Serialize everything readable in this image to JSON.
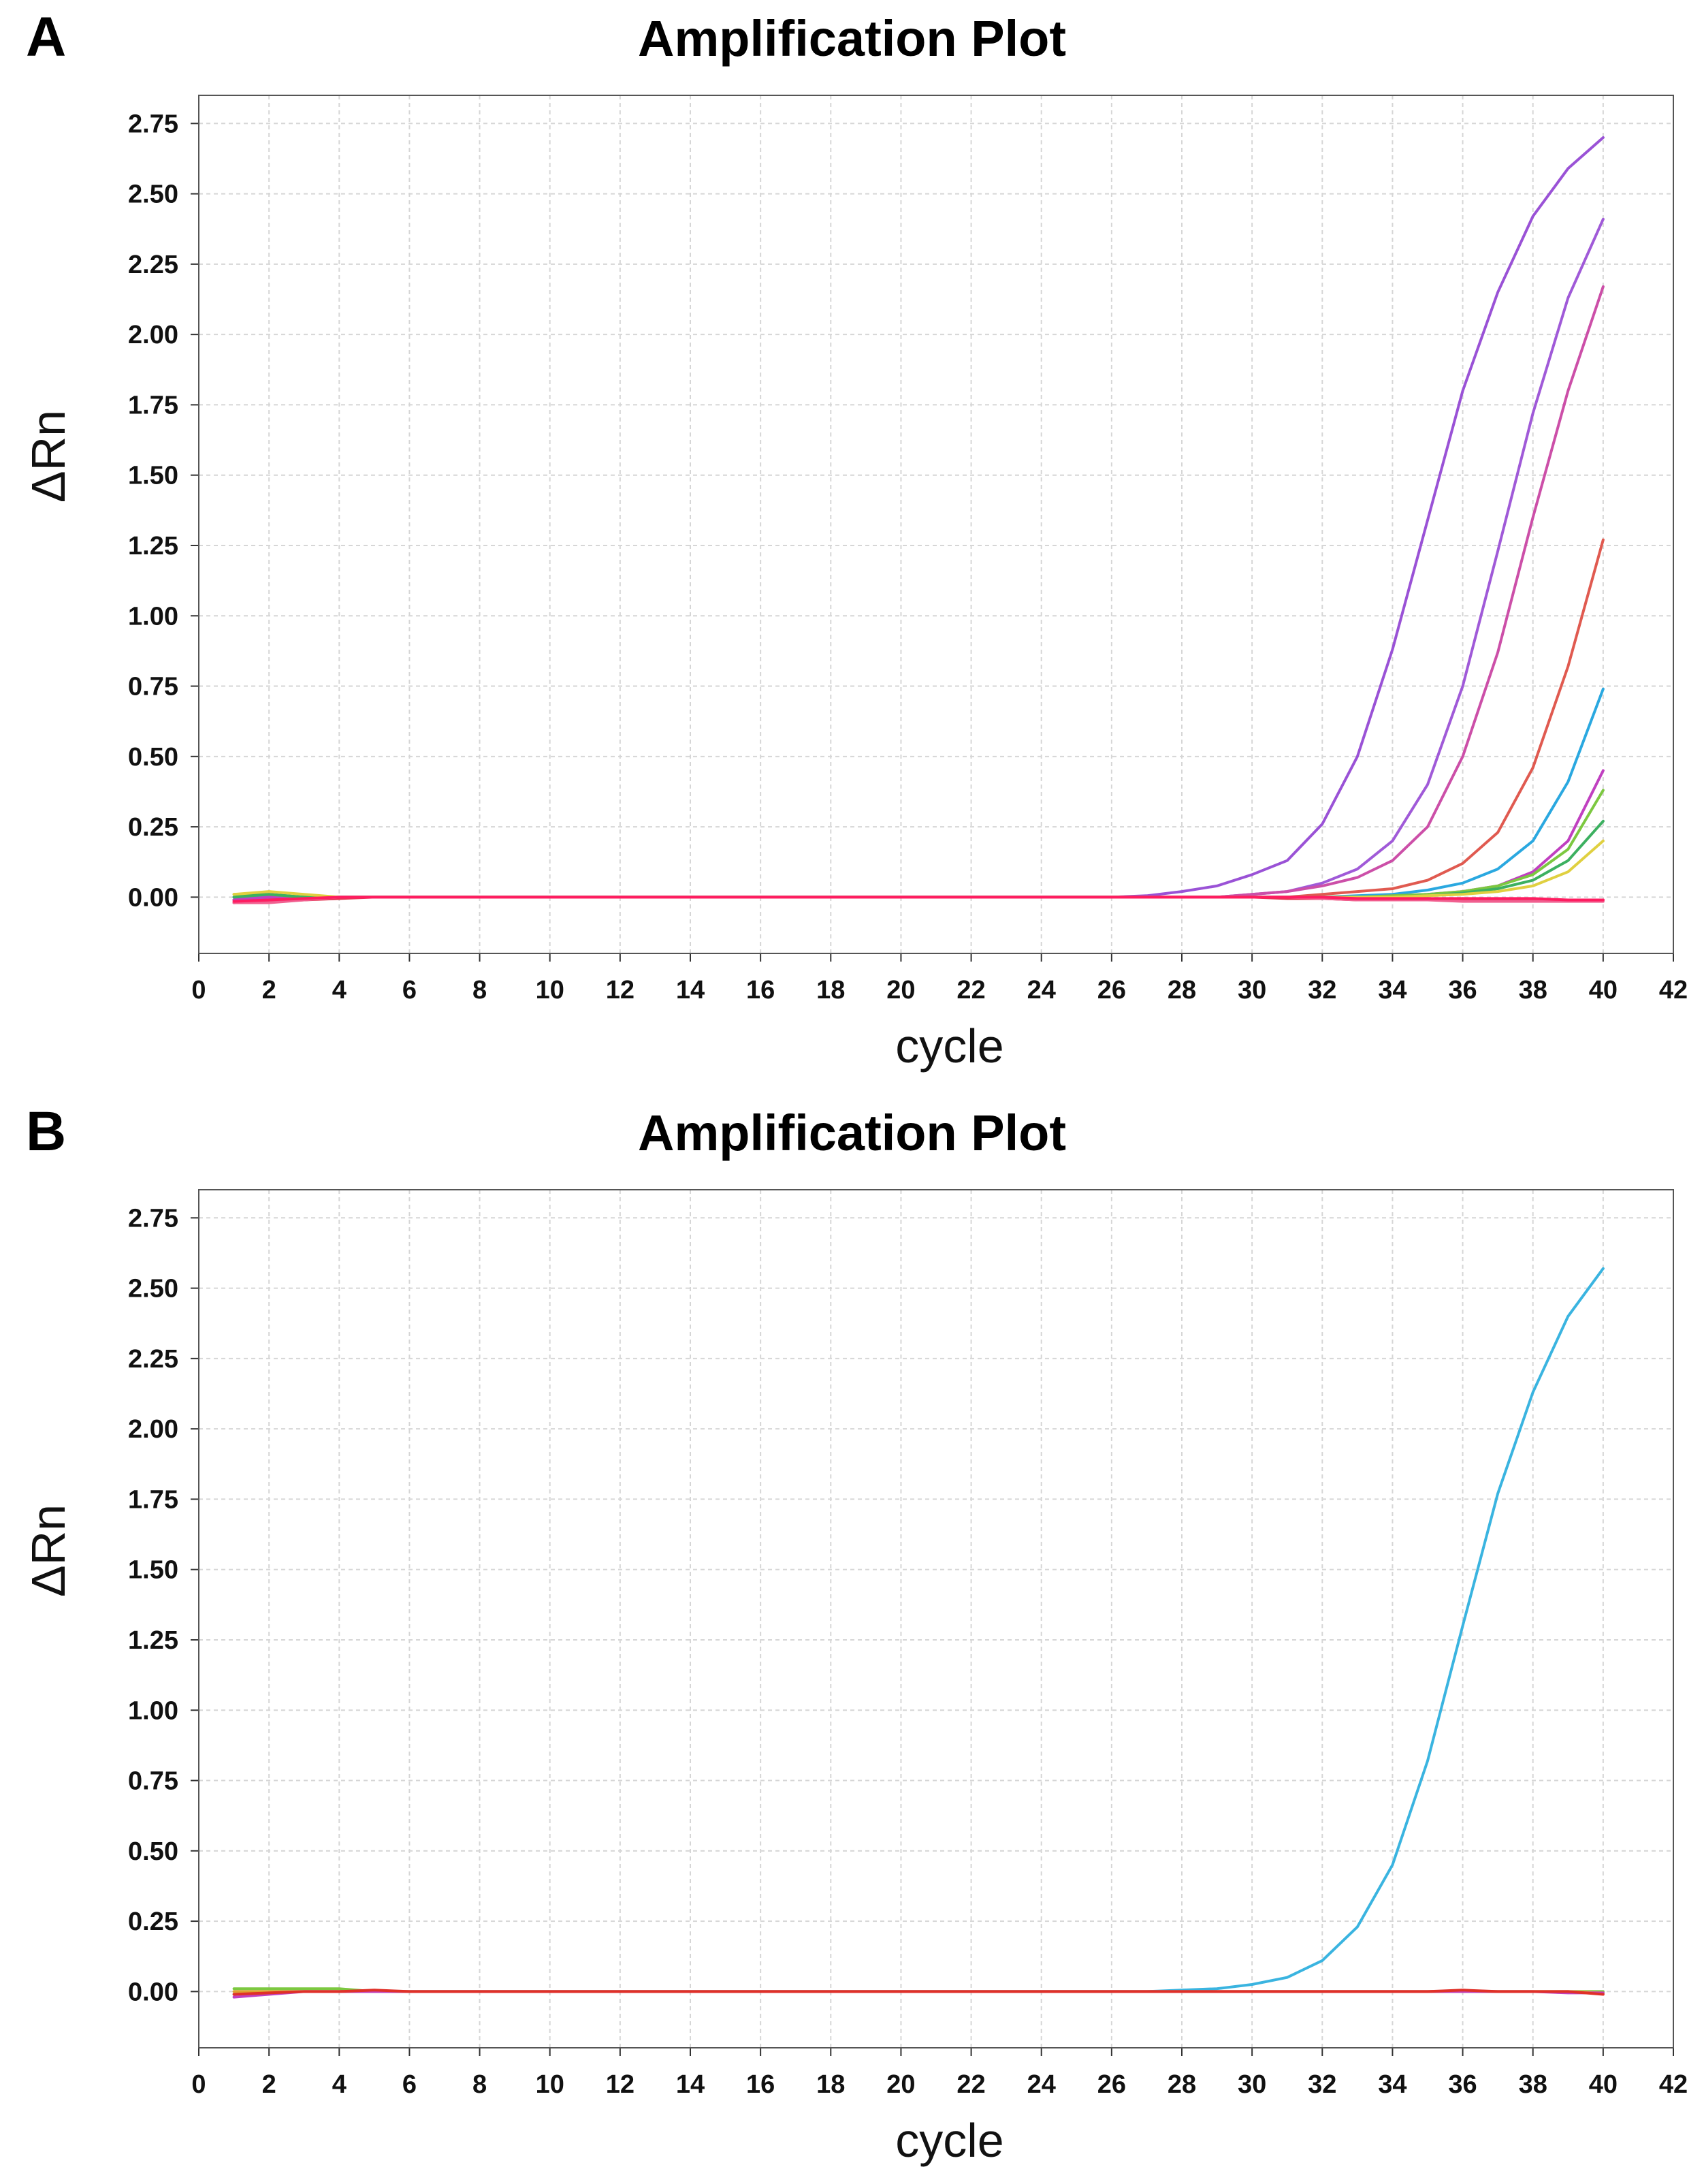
{
  "chart_data": [
    {
      "panel": "A",
      "type": "line",
      "title": "Amplification Plot",
      "xlabel": "cycle",
      "ylabel": "ΔRn",
      "xlim": [
        0,
        42
      ],
      "ylim": [
        -0.2,
        2.85
      ],
      "xticks": [
        "0",
        "2",
        "4",
        "6",
        "8",
        "10",
        "12",
        "14",
        "16",
        "18",
        "20",
        "22",
        "24",
        "26",
        "28",
        "30",
        "32",
        "34",
        "36",
        "38",
        "40",
        "42"
      ],
      "yticks": [
        "0.00",
        "0.25",
        "0.50",
        "0.75",
        "1.00",
        "1.25",
        "1.50",
        "1.75",
        "2.00",
        "2.25",
        "2.50",
        "2.75"
      ],
      "grid": true,
      "x_start": 1,
      "series": [
        {
          "name": "curve-1",
          "color": "#9a52d6",
          "values": [
            -0.01,
            0.01,
            0.0,
            0.0,
            0.0,
            0.0,
            0.0,
            0.0,
            0.0,
            0.0,
            0.0,
            0.0,
            0.0,
            0.0,
            0.0,
            0.0,
            0.0,
            0.0,
            0.0,
            0.0,
            0.0,
            0.0,
            0.0,
            0.0,
            0.0,
            0.0,
            0.005,
            0.02,
            0.04,
            0.08,
            0.13,
            0.26,
            0.5,
            0.88,
            1.34,
            1.8,
            2.15,
            2.42,
            2.59,
            2.7
          ]
        },
        {
          "name": "curve-2",
          "color": "#a05ad8",
          "values": [
            -0.01,
            0.0,
            0.0,
            0.0,
            0.0,
            0.0,
            0.0,
            0.0,
            0.0,
            0.0,
            0.0,
            0.0,
            0.0,
            0.0,
            0.0,
            0.0,
            0.0,
            0.0,
            0.0,
            0.0,
            0.0,
            0.0,
            0.0,
            0.0,
            0.0,
            0.0,
            0.0,
            0.0,
            0.0,
            0.01,
            0.02,
            0.05,
            0.1,
            0.2,
            0.4,
            0.75,
            1.23,
            1.72,
            2.13,
            2.41
          ]
        },
        {
          "name": "curve-3",
          "color": "#cc4fa8",
          "values": [
            -0.02,
            0.0,
            0.0,
            0.0,
            0.0,
            0.0,
            0.0,
            0.0,
            0.0,
            0.0,
            0.0,
            0.0,
            0.0,
            0.0,
            0.0,
            0.0,
            0.0,
            0.0,
            0.0,
            0.0,
            0.0,
            0.0,
            0.0,
            0.0,
            0.0,
            0.0,
            0.0,
            0.0,
            0.0,
            0.01,
            0.02,
            0.04,
            0.07,
            0.13,
            0.25,
            0.5,
            0.87,
            1.35,
            1.8,
            2.17
          ]
        },
        {
          "name": "curve-4",
          "color": "#e05a50",
          "values": [
            -0.01,
            0.0,
            0.0,
            0.0,
            0.0,
            0.0,
            0.0,
            0.0,
            0.0,
            0.0,
            0.0,
            0.0,
            0.0,
            0.0,
            0.0,
            0.0,
            0.0,
            0.0,
            0.0,
            0.0,
            0.0,
            0.0,
            0.0,
            0.0,
            0.0,
            0.0,
            0.0,
            0.0,
            0.0,
            0.0,
            0.0,
            0.01,
            0.02,
            0.03,
            0.06,
            0.12,
            0.23,
            0.46,
            0.82,
            1.27
          ]
        },
        {
          "name": "curve-5",
          "color": "#2aa8e0",
          "values": [
            0.0,
            0.0,
            0.0,
            0.0,
            0.0,
            0.0,
            0.0,
            0.0,
            0.0,
            0.0,
            0.0,
            0.0,
            0.0,
            0.0,
            0.0,
            0.0,
            0.0,
            0.0,
            0.0,
            0.0,
            0.0,
            0.0,
            0.0,
            0.0,
            0.0,
            0.0,
            0.0,
            0.0,
            0.0,
            0.0,
            0.0,
            0.0,
            0.005,
            0.01,
            0.025,
            0.05,
            0.1,
            0.2,
            0.41,
            0.74
          ]
        },
        {
          "name": "curve-6",
          "color": "#c040c0",
          "values": [
            -0.01,
            0.0,
            0.0,
            0.0,
            0.0,
            0.0,
            0.0,
            0.0,
            0.0,
            0.0,
            0.0,
            0.0,
            0.0,
            0.0,
            0.0,
            0.0,
            0.0,
            0.0,
            0.0,
            0.0,
            0.0,
            0.0,
            0.0,
            0.0,
            0.0,
            0.0,
            0.0,
            0.0,
            0.0,
            0.0,
            0.0,
            0.0,
            0.0,
            0.005,
            0.01,
            0.02,
            0.04,
            0.09,
            0.2,
            0.45
          ]
        },
        {
          "name": "curve-7",
          "color": "#7cc840",
          "values": [
            0.01,
            0.01,
            0.0,
            0.0,
            0.0,
            0.0,
            0.0,
            0.0,
            0.0,
            0.0,
            0.0,
            0.0,
            0.0,
            0.0,
            0.0,
            0.0,
            0.0,
            0.0,
            0.0,
            0.0,
            0.0,
            0.0,
            0.0,
            0.0,
            0.0,
            0.0,
            0.0,
            0.0,
            0.0,
            0.0,
            0.0,
            0.0,
            0.0,
            0.005,
            0.01,
            0.02,
            0.04,
            0.08,
            0.17,
            0.38
          ]
        },
        {
          "name": "curve-8",
          "color": "#3cb060",
          "values": [
            0.0,
            0.01,
            0.0,
            0.0,
            0.0,
            0.0,
            0.0,
            0.0,
            0.0,
            0.0,
            0.0,
            0.0,
            0.0,
            0.0,
            0.0,
            0.0,
            0.0,
            0.0,
            0.0,
            0.0,
            0.0,
            0.0,
            0.0,
            0.0,
            0.0,
            0.0,
            0.0,
            0.0,
            0.0,
            0.0,
            0.0,
            0.0,
            0.0,
            0.0,
            0.005,
            0.015,
            0.03,
            0.06,
            0.13,
            0.27
          ]
        },
        {
          "name": "curve-9",
          "color": "#e0d040",
          "values": [
            0.01,
            0.02,
            0.01,
            0.0,
            0.0,
            0.0,
            0.0,
            0.0,
            0.0,
            0.0,
            0.0,
            0.0,
            0.0,
            0.0,
            0.0,
            0.0,
            0.0,
            0.0,
            0.0,
            0.0,
            0.0,
            0.0,
            0.0,
            0.0,
            0.0,
            0.0,
            0.0,
            0.0,
            0.0,
            0.0,
            0.0,
            0.0,
            0.0,
            0.0,
            0.005,
            0.01,
            0.02,
            0.04,
            0.09,
            0.2
          ]
        },
        {
          "name": "curve-10",
          "color": "#e0304a",
          "values": [
            -0.02,
            -0.015,
            -0.01,
            -0.005,
            0.0,
            0.0,
            0.0,
            0.0,
            0.0,
            0.0,
            0.0,
            0.0,
            0.0,
            0.0,
            0.0,
            0.0,
            0.0,
            0.0,
            0.0,
            0.0,
            0.0,
            0.0,
            0.0,
            0.0,
            0.0,
            0.0,
            0.0,
            0.0,
            0.0,
            0.0,
            -0.005,
            -0.005,
            -0.01,
            -0.01,
            -0.01,
            -0.01,
            -0.01,
            -0.01,
            -0.01,
            -0.01
          ]
        },
        {
          "name": "curve-11",
          "color": "#f06090",
          "values": [
            -0.02,
            -0.02,
            -0.01,
            0.0,
            0.0,
            0.0,
            0.0,
            0.0,
            0.0,
            0.0,
            0.0,
            0.0,
            0.0,
            0.0,
            0.0,
            0.0,
            0.0,
            0.0,
            0.0,
            0.0,
            0.0,
            0.0,
            0.0,
            0.0,
            0.0,
            0.0,
            0.0,
            0.0,
            0.0,
            0.0,
            0.0,
            -0.005,
            -0.01,
            -0.01,
            -0.01,
            -0.015,
            -0.015,
            -0.015,
            -0.015,
            -0.015
          ]
        },
        {
          "name": "curve-12",
          "color": "#ff1c60",
          "values": [
            -0.015,
            -0.01,
            -0.005,
            0.0,
            0.0,
            0.0,
            0.0,
            0.0,
            0.0,
            0.0,
            0.0,
            0.0,
            0.0,
            0.0,
            0.0,
            0.0,
            0.0,
            0.0,
            0.0,
            0.0,
            0.0,
            0.0,
            0.0,
            0.0,
            0.0,
            0.0,
            0.0,
            0.0,
            0.0,
            0.0,
            0.0,
            0.0,
            -0.005,
            -0.005,
            -0.005,
            -0.005,
            -0.005,
            -0.005,
            -0.01,
            -0.01
          ]
        }
      ]
    },
    {
      "panel": "B",
      "type": "line",
      "title": "Amplification Plot",
      "xlabel": "cycle",
      "ylabel": "ΔRn",
      "xlim": [
        0,
        42
      ],
      "ylim": [
        -0.2,
        2.85
      ],
      "xticks": [
        "0",
        "2",
        "4",
        "6",
        "8",
        "10",
        "12",
        "14",
        "16",
        "18",
        "20",
        "22",
        "24",
        "26",
        "28",
        "30",
        "32",
        "34",
        "36",
        "38",
        "40",
        "42"
      ],
      "yticks": [
        "0.00",
        "0.25",
        "0.50",
        "0.75",
        "1.00",
        "1.25",
        "1.50",
        "1.75",
        "2.00",
        "2.25",
        "2.50",
        "2.75"
      ],
      "grid": true,
      "x_start": 1,
      "series": [
        {
          "name": "curve-1",
          "color": "#3ab4e0",
          "values": [
            -0.01,
            0.0,
            0.0,
            0.0,
            0.0,
            0.0,
            0.0,
            0.0,
            0.0,
            0.0,
            0.0,
            0.0,
            0.0,
            0.0,
            0.0,
            0.0,
            0.0,
            0.0,
            0.0,
            0.0,
            0.0,
            0.0,
            0.0,
            0.0,
            0.0,
            0.0,
            0.0,
            0.005,
            0.01,
            0.025,
            0.05,
            0.11,
            0.23,
            0.45,
            0.82,
            1.3,
            1.77,
            2.13,
            2.4,
            2.57
          ]
        },
        {
          "name": "curve-2",
          "color": "#7cc840",
          "values": [
            0.01,
            0.01,
            0.01,
            0.01,
            0.0,
            0.0,
            0.0,
            0.0,
            0.0,
            0.0,
            0.0,
            0.0,
            0.0,
            0.0,
            0.0,
            0.0,
            0.0,
            0.0,
            0.0,
            0.0,
            0.0,
            0.0,
            0.0,
            0.0,
            0.0,
            0.0,
            0.0,
            0.0,
            0.0,
            0.0,
            0.0,
            0.0,
            0.0,
            0.0,
            0.0,
            0.0,
            0.0,
            0.0,
            0.0,
            0.0
          ]
        },
        {
          "name": "curve-3",
          "color": "#e0a030",
          "values": [
            0.0,
            0.0,
            0.0,
            0.0,
            0.0,
            0.0,
            0.0,
            0.0,
            0.0,
            0.0,
            0.0,
            0.0,
            0.0,
            0.0,
            0.0,
            0.0,
            0.0,
            0.0,
            0.0,
            0.0,
            0.0,
            0.0,
            0.0,
            0.0,
            0.0,
            0.0,
            0.0,
            0.0,
            0.0,
            0.0,
            0.0,
            0.0,
            0.0,
            0.0,
            0.0,
            0.0,
            0.0,
            0.0,
            0.0,
            -0.005
          ]
        },
        {
          "name": "curve-4",
          "color": "#c040c0",
          "values": [
            -0.02,
            -0.01,
            0.0,
            0.0,
            0.0,
            0.0,
            0.0,
            0.0,
            0.0,
            0.0,
            0.0,
            0.0,
            0.0,
            0.0,
            0.0,
            0.0,
            0.0,
            0.0,
            0.0,
            0.0,
            0.0,
            0.0,
            0.0,
            0.0,
            0.0,
            0.0,
            0.0,
            0.0,
            0.0,
            0.0,
            0.0,
            0.0,
            0.0,
            0.0,
            0.0,
            0.0,
            0.0,
            0.0,
            -0.005,
            -0.005
          ]
        },
        {
          "name": "curve-5",
          "color": "#e03028",
          "values": [
            -0.01,
            -0.005,
            0.0,
            0.0,
            0.005,
            0.0,
            0.0,
            0.0,
            0.0,
            0.0,
            0.0,
            0.0,
            0.0,
            0.0,
            0.0,
            0.0,
            0.0,
            0.0,
            0.0,
            0.0,
            0.0,
            0.0,
            0.0,
            0.0,
            0.0,
            0.0,
            0.0,
            0.0,
            0.0,
            0.0,
            0.0,
            0.0,
            0.0,
            0.0,
            0.0,
            0.005,
            0.0,
            0.0,
            0.0,
            -0.01
          ]
        }
      ]
    }
  ]
}
